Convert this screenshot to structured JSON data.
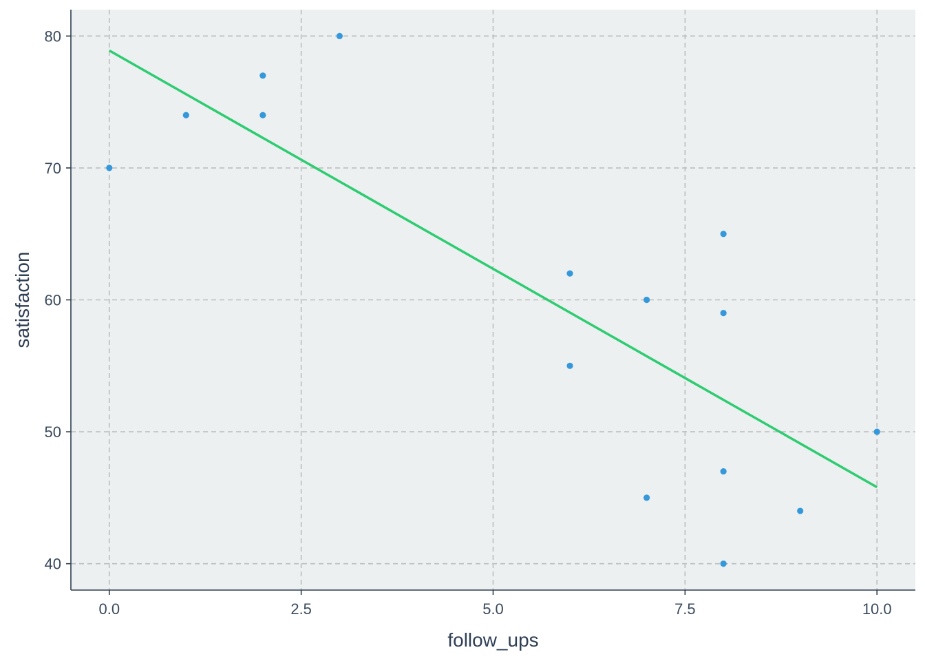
{
  "chart_data": {
    "type": "scatter",
    "title": "",
    "xlabel": "follow_ups",
    "ylabel": "satisfaction",
    "xlim": [
      -0.5,
      10.5
    ],
    "ylim": [
      38,
      82
    ],
    "x_ticks": [
      0.0,
      2.5,
      5.0,
      7.5,
      10.0
    ],
    "x_tick_labels": [
      "0.0",
      "2.5",
      "5.0",
      "7.5",
      "10.0"
    ],
    "y_ticks": [
      40,
      50,
      60,
      70,
      80
    ],
    "y_tick_labels": [
      "40",
      "50",
      "60",
      "70",
      "80"
    ],
    "grid": true,
    "grid_style": "dashed",
    "legend": "none",
    "points": [
      {
        "x": 0,
        "y": 70
      },
      {
        "x": 1,
        "y": 74
      },
      {
        "x": 2,
        "y": 77
      },
      {
        "x": 2,
        "y": 74
      },
      {
        "x": 3,
        "y": 80
      },
      {
        "x": 6,
        "y": 62
      },
      {
        "x": 6,
        "y": 55
      },
      {
        "x": 7,
        "y": 60
      },
      {
        "x": 7,
        "y": 45
      },
      {
        "x": 8,
        "y": 65
      },
      {
        "x": 8,
        "y": 59
      },
      {
        "x": 8,
        "y": 47
      },
      {
        "x": 8,
        "y": 40
      },
      {
        "x": 9,
        "y": 44
      },
      {
        "x": 10,
        "y": 50
      }
    ],
    "trend_line": {
      "x": [
        0,
        10
      ],
      "y": [
        78.9,
        45.8
      ]
    },
    "colors": {
      "panel": "#ecf0f1",
      "grid": "#bdbdbd",
      "axis": "#2c3e50",
      "point": "#3498db",
      "trend": "#2ecc71"
    }
  }
}
